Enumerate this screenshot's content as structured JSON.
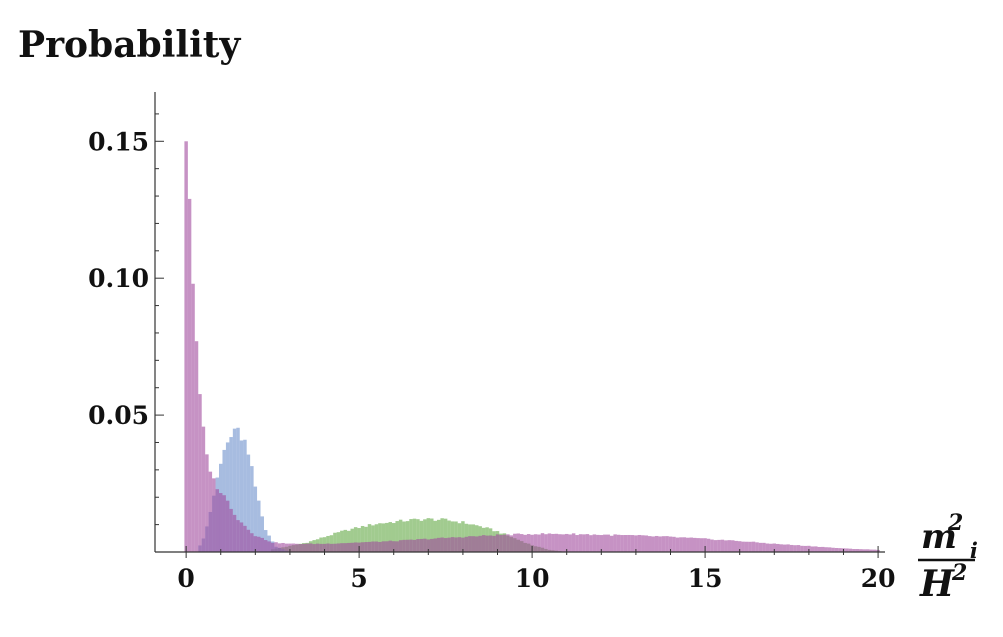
{
  "chart_data": {
    "type": "bar",
    "title": "",
    "ylabel": "Probability",
    "xlabel": {
      "numerator": "m",
      "numerator_sub": "i",
      "numerator_sup": "2",
      "denominator": "H",
      "denominator_sup": "2"
    },
    "xlim": [
      -0.9,
      20.2
    ],
    "ylim": [
      0,
      0.168
    ],
    "x_ticks": [
      {
        "value": 0,
        "label": "0"
      },
      {
        "value": 5,
        "label": "5"
      },
      {
        "value": 10,
        "label": "10"
      },
      {
        "value": 15,
        "label": "15"
      },
      {
        "value": 20,
        "label": "20"
      }
    ],
    "y_ticks": [
      {
        "value": 0.05,
        "label": "0.05"
      },
      {
        "value": 0.1,
        "label": "0.10"
      },
      {
        "value": 0.15,
        "label": "0.15"
      }
    ],
    "bin_width": 0.1,
    "grid": false,
    "legend": "none",
    "series": [
      {
        "color": "#63a845",
        "opacity": 0.6,
        "points": [
          [
            2.5,
            0.001
          ],
          [
            3,
            0.0022
          ],
          [
            3.5,
            0.0035
          ],
          [
            4,
            0.0055
          ],
          [
            4.5,
            0.0075
          ],
          [
            5,
            0.009
          ],
          [
            5.5,
            0.0103
          ],
          [
            6,
            0.011
          ],
          [
            6.5,
            0.0117
          ],
          [
            7,
            0.012
          ],
          [
            7.5,
            0.0117
          ],
          [
            8,
            0.0108
          ],
          [
            8.5,
            0.0094
          ],
          [
            9,
            0.0075
          ],
          [
            9.5,
            0.005
          ],
          [
            10,
            0.0025
          ],
          [
            10.5,
            0.0008
          ],
          [
            11,
            0.0
          ]
        ]
      },
      {
        "color": "#6d8fcc",
        "opacity": 0.6,
        "points": [
          [
            0.3,
            0.0
          ],
          [
            0.5,
            0.005
          ],
          [
            0.7,
            0.014
          ],
          [
            0.9,
            0.027
          ],
          [
            1.1,
            0.037
          ],
          [
            1.3,
            0.0425
          ],
          [
            1.5,
            0.044
          ],
          [
            1.7,
            0.04
          ],
          [
            1.9,
            0.03
          ],
          [
            2.1,
            0.018
          ],
          [
            2.3,
            0.008
          ],
          [
            2.6,
            0.002
          ],
          [
            3,
            0.0
          ]
        ]
      },
      {
        "color": "#a04a9c",
        "opacity": 0.6,
        "points": [
          [
            0,
            0.15
          ],
          [
            0.1,
            0.13
          ],
          [
            0.2,
            0.1
          ],
          [
            0.3,
            0.074
          ],
          [
            0.4,
            0.057
          ],
          [
            0.5,
            0.044
          ],
          [
            0.6,
            0.035
          ],
          [
            0.8,
            0.026
          ],
          [
            1.0,
            0.022
          ],
          [
            1.2,
            0.0185
          ],
          [
            1.5,
            0.012
          ],
          [
            2,
            0.006
          ],
          [
            2.5,
            0.0035
          ],
          [
            3,
            0.003
          ],
          [
            4,
            0.003
          ],
          [
            5,
            0.0035
          ],
          [
            6,
            0.004
          ],
          [
            7,
            0.0048
          ],
          [
            8,
            0.0055
          ],
          [
            9,
            0.0062
          ],
          [
            10,
            0.0066
          ],
          [
            11,
            0.0066
          ],
          [
            12,
            0.0063
          ],
          [
            13,
            0.006
          ],
          [
            14,
            0.0055
          ],
          [
            15,
            0.0048
          ],
          [
            16,
            0.004
          ],
          [
            17,
            0.003
          ],
          [
            18,
            0.0022
          ],
          [
            19,
            0.0013
          ],
          [
            20,
            0.0008
          ]
        ]
      }
    ]
  }
}
